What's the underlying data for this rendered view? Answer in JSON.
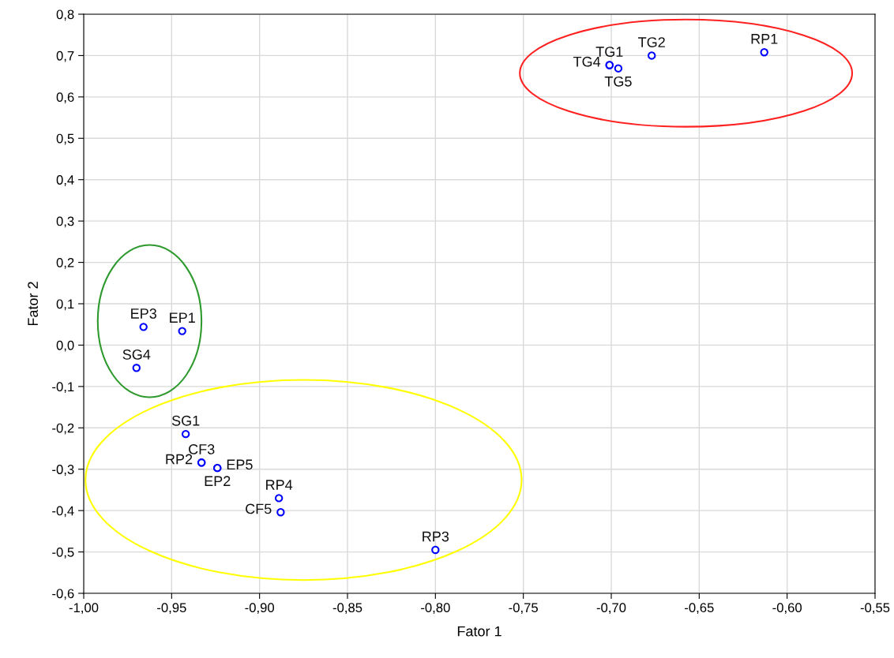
{
  "chart_data": {
    "type": "scatter",
    "xlabel": "Fator 1",
    "ylabel": "Fator 2",
    "xlim": [
      -1.0,
      -0.55
    ],
    "ylim": [
      -0.6,
      0.8
    ],
    "xticks": [
      {
        "value": -1.0,
        "label": "-1,00"
      },
      {
        "value": -0.95,
        "label": "-0,95"
      },
      {
        "value": -0.9,
        "label": "-0,90"
      },
      {
        "value": -0.85,
        "label": "-0,85"
      },
      {
        "value": -0.8,
        "label": "-0,80"
      },
      {
        "value": -0.75,
        "label": "-0,75"
      },
      {
        "value": -0.7,
        "label": "-0,70"
      },
      {
        "value": -0.65,
        "label": "-0,65"
      },
      {
        "value": -0.6,
        "label": "-0,60"
      },
      {
        "value": -0.55,
        "label": "-0,55"
      }
    ],
    "yticks": [
      {
        "value": -0.6,
        "label": "-0,6"
      },
      {
        "value": -0.5,
        "label": "-0,5"
      },
      {
        "value": -0.4,
        "label": "-0,4"
      },
      {
        "value": -0.3,
        "label": "-0,3"
      },
      {
        "value": -0.2,
        "label": "-0,2"
      },
      {
        "value": -0.1,
        "label": "-0,1"
      },
      {
        "value": 0.0,
        "label": "0,0"
      },
      {
        "value": 0.1,
        "label": "0,1"
      },
      {
        "value": 0.2,
        "label": "0,2"
      },
      {
        "value": 0.3,
        "label": "0,3"
      },
      {
        "value": 0.4,
        "label": "0,4"
      },
      {
        "value": 0.5,
        "label": "0,5"
      },
      {
        "value": 0.6,
        "label": "0,6"
      },
      {
        "value": 0.7,
        "label": "0,7"
      },
      {
        "value": 0.8,
        "label": "0,8"
      }
    ],
    "grid": true,
    "marker": "circle",
    "series": [
      {
        "color": "#0000ff",
        "x": [
          -0.701,
          -0.701,
          -0.696,
          -0.677,
          -0.613,
          -0.966,
          -0.944,
          -0.97,
          -0.942,
          -0.933,
          -0.933,
          -0.924,
          -0.924,
          -0.889,
          -0.888,
          -0.8
        ],
        "values": [
          0.677,
          0.677,
          0.669,
          0.7,
          0.708,
          0.044,
          0.034,
          -0.055,
          -0.215,
          -0.284,
          -0.284,
          -0.297,
          -0.297,
          -0.37,
          -0.404,
          -0.495
        ],
        "value_labels": [
          "TG1",
          "TG4",
          "TG5",
          "TG2",
          "RP1",
          "EP3",
          "EP1",
          "SG4",
          "SG1",
          "CF3",
          "RP2",
          "EP2",
          "EP5",
          "RP4",
          "CF5",
          "RP3"
        ]
      }
    ]
  }
}
